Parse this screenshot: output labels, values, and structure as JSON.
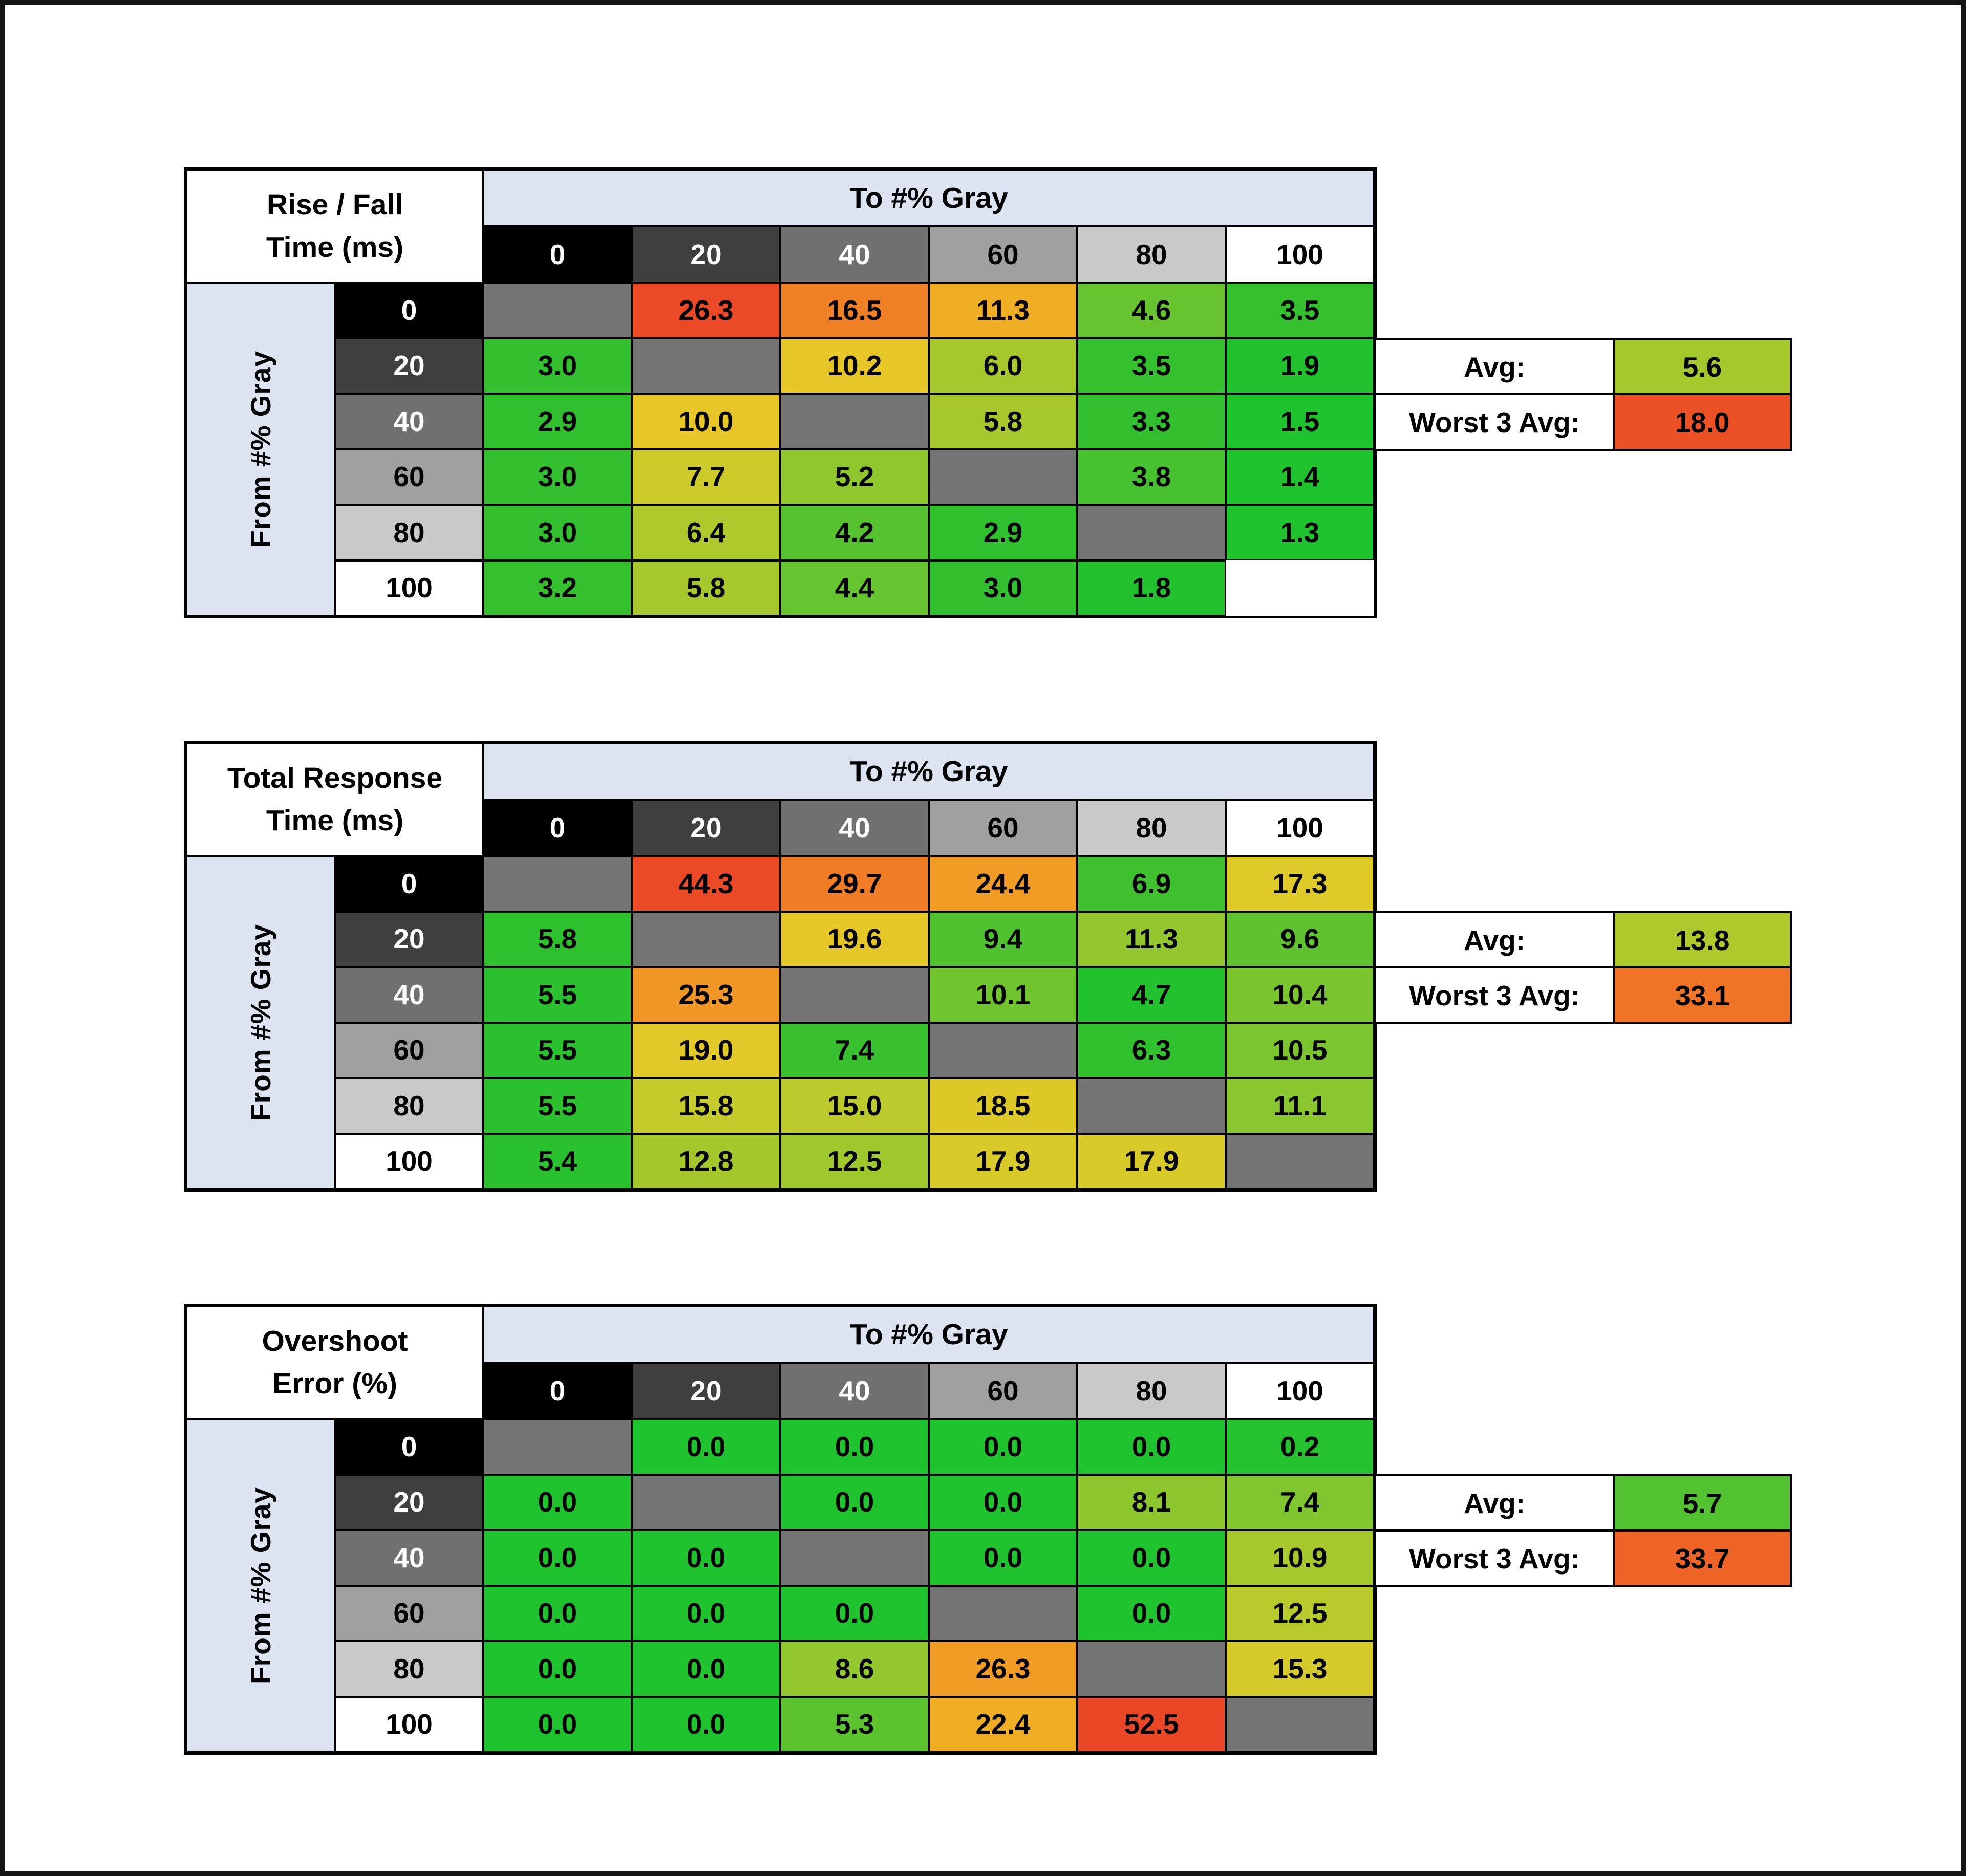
{
  "colors": {
    "diagonal": "#747474",
    "band": "#dbe4f0",
    "border": "#000000",
    "page_background": "#ffffff"
  },
  "axis": {
    "to": "To #% Gray",
    "from": "From #% Gray"
  },
  "gray_scale": [
    {
      "label": "0",
      "bg": "#000000",
      "fg": "#ffffff"
    },
    {
      "label": "20",
      "bg": "#3f3f3f",
      "fg": "#ffffff"
    },
    {
      "label": "40",
      "bg": "#707070",
      "fg": "#ffffff"
    },
    {
      "label": "60",
      "bg": "#a0a0a0",
      "fg": "#000000"
    },
    {
      "label": "80",
      "bg": "#c9c9c9",
      "fg": "#000000"
    },
    {
      "label": "100",
      "bg": "#ffffff",
      "fg": "#000000"
    }
  ],
  "chart_data": [
    {
      "type": "heatmap",
      "title_line1": "Rise / Fall",
      "title_line2": "Time (ms)",
      "to_categories": [
        "0",
        "20",
        "40",
        "60",
        "80",
        "100"
      ],
      "from_categories": [
        "0",
        "20",
        "40",
        "60",
        "80",
        "100"
      ],
      "rows": [
        {
          "from": "0",
          "cells": [
            null,
            {
              "v": "26.3",
              "c": "#ea4a26"
            },
            {
              "v": "16.5",
              "c": "#f08025"
            },
            {
              "v": "11.3",
              "c": "#f0ae25"
            },
            {
              "v": "4.6",
              "c": "#68c42e"
            },
            {
              "v": "3.5",
              "c": "#35c02e"
            }
          ]
        },
        {
          "from": "20",
          "cells": [
            {
              "v": "3.0",
              "c": "#32c02e"
            },
            null,
            {
              "v": "10.2",
              "c": "#e6c727"
            },
            {
              "v": "6.0",
              "c": "#a6c82c"
            },
            {
              "v": "3.5",
              "c": "#35c02e"
            },
            {
              "v": "1.9",
              "c": "#22c22e"
            }
          ]
        },
        {
          "from": "40",
          "cells": [
            {
              "v": "2.9",
              "c": "#30c02e"
            },
            {
              "v": "10.0",
              "c": "#e6c727"
            },
            null,
            {
              "v": "5.8",
              "c": "#a6c82c"
            },
            {
              "v": "3.3",
              "c": "#33c02e"
            },
            {
              "v": "1.5",
              "c": "#1fc32e"
            }
          ]
        },
        {
          "from": "60",
          "cells": [
            {
              "v": "3.0",
              "c": "#32c02e"
            },
            {
              "v": "7.7",
              "c": "#cccb29"
            },
            {
              "v": "5.2",
              "c": "#8fc72d"
            },
            null,
            {
              "v": "3.8",
              "c": "#46c130"
            },
            {
              "v": "1.4",
              "c": "#1fc32e"
            }
          ]
        },
        {
          "from": "80",
          "cells": [
            {
              "v": "3.0",
              "c": "#32c02e"
            },
            {
              "v": "6.4",
              "c": "#adc92c"
            },
            {
              "v": "4.2",
              "c": "#57c22f"
            },
            {
              "v": "2.9",
              "c": "#2fc02e"
            },
            null,
            {
              "v": "1.3",
              "c": "#1ec32e"
            }
          ]
        },
        {
          "from": "100",
          "cells": [
            {
              "v": "3.2",
              "c": "#35c02e"
            },
            {
              "v": "5.8",
              "c": "#a6c82c"
            },
            {
              "v": "4.4",
              "c": "#66c42f"
            },
            {
              "v": "3.0",
              "c": "#32c02e"
            },
            {
              "v": "1.8",
              "c": "#21c22e"
            }
          ]
        }
      ],
      "summary": {
        "avg_label": "Avg:",
        "avg_value": "5.6",
        "avg_color": "#a6c82c",
        "worst_label": "Worst 3 Avg:",
        "worst_value": "18.0",
        "worst_color": "#ec5126"
      }
    },
    {
      "type": "heatmap",
      "title_line1": "Total Response",
      "title_line2": "Time (ms)",
      "to_categories": [
        "0",
        "20",
        "40",
        "60",
        "80",
        "100"
      ],
      "from_categories": [
        "0",
        "20",
        "40",
        "60",
        "80",
        "100"
      ],
      "rows": [
        {
          "from": "0",
          "cells": [
            null,
            {
              "v": "44.3",
              "c": "#ea4a26"
            },
            {
              "v": "29.7",
              "c": "#f07c25"
            },
            {
              "v": "24.4",
              "c": "#f09c25"
            },
            {
              "v": "6.9",
              "c": "#3ec02f"
            },
            {
              "v": "17.3",
              "c": "#ddca28"
            }
          ]
        },
        {
          "from": "20",
          "cells": [
            {
              "v": "5.8",
              "c": "#2ec12e"
            },
            null,
            {
              "v": "19.6",
              "c": "#e5c827"
            },
            {
              "v": "9.4",
              "c": "#50c230"
            },
            {
              "v": "11.3",
              "c": "#93c72d"
            },
            {
              "v": "9.6",
              "c": "#5fc32f"
            }
          ]
        },
        {
          "from": "40",
          "cells": [
            {
              "v": "5.5",
              "c": "#2bc12e"
            },
            {
              "v": "25.3",
              "c": "#f09625"
            },
            null,
            {
              "v": "10.1",
              "c": "#70c52e"
            },
            {
              "v": "4.7",
              "c": "#21c22e"
            },
            {
              "v": "10.4",
              "c": "#7ac52e"
            }
          ]
        },
        {
          "from": "60",
          "cells": [
            {
              "v": "5.5",
              "c": "#2bc12e"
            },
            {
              "v": "19.0",
              "c": "#e0c928"
            },
            {
              "v": "7.4",
              "c": "#39c02f"
            },
            null,
            {
              "v": "6.3",
              "c": "#31c12e"
            },
            {
              "v": "10.5",
              "c": "#7dc52e"
            }
          ]
        },
        {
          "from": "80",
          "cells": [
            {
              "v": "5.5",
              "c": "#2bc12e"
            },
            {
              "v": "15.8",
              "c": "#c4cb2a"
            },
            {
              "v": "15.0",
              "c": "#bccb2b"
            },
            {
              "v": "18.5",
              "c": "#dcc928"
            },
            null,
            {
              "v": "11.1",
              "c": "#8ac62d"
            }
          ]
        },
        {
          "from": "100",
          "cells": [
            {
              "v": "5.4",
              "c": "#2ac12e"
            },
            {
              "v": "12.8",
              "c": "#a4c82c"
            },
            {
              "v": "12.5",
              "c": "#9fc82c"
            },
            {
              "v": "17.9",
              "c": "#d7ca29"
            },
            {
              "v": "17.9",
              "c": "#d7ca29"
            },
            null
          ]
        }
      ],
      "summary": {
        "avg_label": "Avg:",
        "avg_value": "13.8",
        "avg_color": "#aec92c",
        "worst_label": "Worst 3 Avg:",
        "worst_value": "33.1",
        "worst_color": "#f07425"
      }
    },
    {
      "type": "heatmap",
      "title_line1": "Overshoot",
      "title_line2": "Error (%)",
      "to_categories": [
        "0",
        "20",
        "40",
        "60",
        "80",
        "100"
      ],
      "from_categories": [
        "0",
        "20",
        "40",
        "60",
        "80",
        "100"
      ],
      "rows": [
        {
          "from": "0",
          "cells": [
            null,
            {
              "v": "0.0",
              "c": "#1fc32e"
            },
            {
              "v": "0.0",
              "c": "#1fc32e"
            },
            {
              "v": "0.0",
              "c": "#1fc32e"
            },
            {
              "v": "0.0",
              "c": "#1fc32e"
            },
            {
              "v": "0.2",
              "c": "#23c22e"
            }
          ]
        },
        {
          "from": "20",
          "cells": [
            {
              "v": "0.0",
              "c": "#1fc32e"
            },
            null,
            {
              "v": "0.0",
              "c": "#1fc32e"
            },
            {
              "v": "0.0",
              "c": "#1fc32e"
            },
            {
              "v": "8.1",
              "c": "#8ec72d"
            },
            {
              "v": "7.4",
              "c": "#80c62e"
            }
          ]
        },
        {
          "from": "40",
          "cells": [
            {
              "v": "0.0",
              "c": "#1fc32e"
            },
            {
              "v": "0.0",
              "c": "#1fc32e"
            },
            null,
            {
              "v": "0.0",
              "c": "#1fc32e"
            },
            {
              "v": "0.0",
              "c": "#1fc32e"
            },
            {
              "v": "10.9",
              "c": "#a6c82c"
            }
          ]
        },
        {
          "from": "60",
          "cells": [
            {
              "v": "0.0",
              "c": "#1fc32e"
            },
            {
              "v": "0.0",
              "c": "#1fc32e"
            },
            {
              "v": "0.0",
              "c": "#1fc32e"
            },
            null,
            {
              "v": "0.0",
              "c": "#1fc32e"
            },
            {
              "v": "12.5",
              "c": "#b9ca2b"
            }
          ]
        },
        {
          "from": "80",
          "cells": [
            {
              "v": "0.0",
              "c": "#1fc32e"
            },
            {
              "v": "0.0",
              "c": "#1fc32e"
            },
            {
              "v": "8.6",
              "c": "#92c72d"
            },
            {
              "v": "26.3",
              "c": "#f09c25"
            },
            null,
            {
              "v": "15.3",
              "c": "#d4ca29"
            }
          ]
        },
        {
          "from": "100",
          "cells": [
            {
              "v": "0.0",
              "c": "#1fc32e"
            },
            {
              "v": "0.0",
              "c": "#1fc32e"
            },
            {
              "v": "5.3",
              "c": "#5cc32f"
            },
            {
              "v": "22.4",
              "c": "#f0ae25"
            },
            {
              "v": "52.5",
              "c": "#e94726"
            },
            null
          ]
        }
      ],
      "summary": {
        "avg_label": "Avg:",
        "avg_value": "5.7",
        "avg_color": "#52c230",
        "worst_label": "Worst 3 Avg:",
        "worst_value": "33.7",
        "worst_color": "#ee6326"
      }
    }
  ]
}
